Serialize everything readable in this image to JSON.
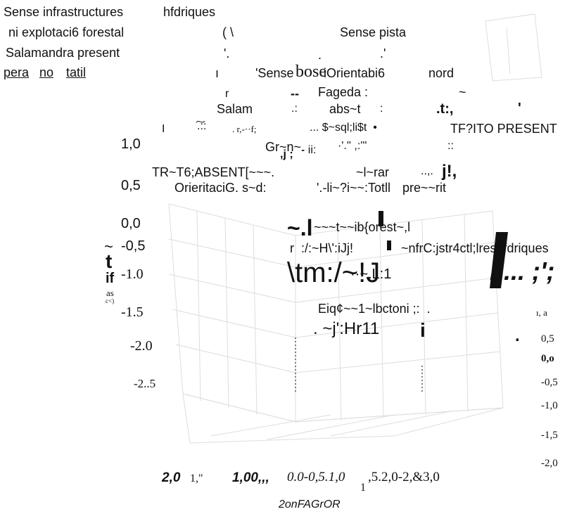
{
  "texts": [
    "Sense infrastructures",
    "hfdriques",
    "ni explotaci6 forestal",
    "Salamandra present",
    "pera",
    "no",
    "tatil",
    "( \\",
    "Sense pista",
    "'.",
    ".",
    ".'",
    "ı",
    "'Sense",
    "bose",
    "iOrientabi6",
    "nord",
    "r",
    "--",
    "Fageda :",
    "~",
    "Salam",
    ".:",
    "abs~t",
    ":",
    ".t:,",
    "'",
    "I",
    "͠.::",
    ". r,-··f;",
    "... $~sql;li$t  •",
    "TF?ITO PRESENT",
    "1,0",
    "Gr~n~.",
    ",j ;",
    "- ii:",
    "·'.'' ,:'''",
    "::",
    "TR~T6;ABSENT[~~~.",
    "~l~rar",
    "..,.",
    "j!,",
    "0,5",
    "OrieritaciG. s~d:",
    "'.-li~?i~~:Totll",
    "pre~~rit",
    "0,0",
    "~.l",
    "~~~t~~ib{orest~,l",
    "~",
    "t",
    "if",
    "as",
    "c<)",
    "-0,5",
    "r  :/:~H\\':iJj!",
    "~nfrC:jstr4ctl;lres$fdriques",
    "-1.0",
    "\\tm:/~!J",
    "··~.L:1",
    "Ij... ;';",
    "-1.5",
    "Eiq¢~~1~lbctoni ;:  .",
    "ı, a",
    "-2.0",
    ". ~j':Hr11",
    "i",
    ".",
    "0,5",
    "0,o",
    "-0,5",
    "-1,0",
    "-1,5",
    "-2,0",
    "-2..5",
    "2,0",
    "1,\"",
    "1,00,,,",
    "0.0-0,5.1,0",
    "1",
    ",5.2,0-2,&3,0",
    "2onFAGrOR"
  ]
}
